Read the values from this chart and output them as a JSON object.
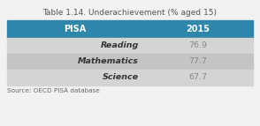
{
  "title": "Table 1.14. Underachievement (% aged 15)",
  "header": [
    "PISA",
    "2015"
  ],
  "rows": [
    [
      "Reading",
      "76.9"
    ],
    [
      "Mathematics",
      "77.7"
    ],
    [
      "Science",
      "67.7"
    ]
  ],
  "source": "Source: OECD PISA database",
  "header_bg": "#2E86AB",
  "header_text_color": "#ffffff",
  "row_bg_light": "#d4d4d4",
  "row_bg_dark": "#c4c4c4",
  "title_color": "#555555",
  "source_color": "#666666",
  "value_color": "#888888",
  "label_color": "#333333",
  "background_color": "#f2f2f2"
}
